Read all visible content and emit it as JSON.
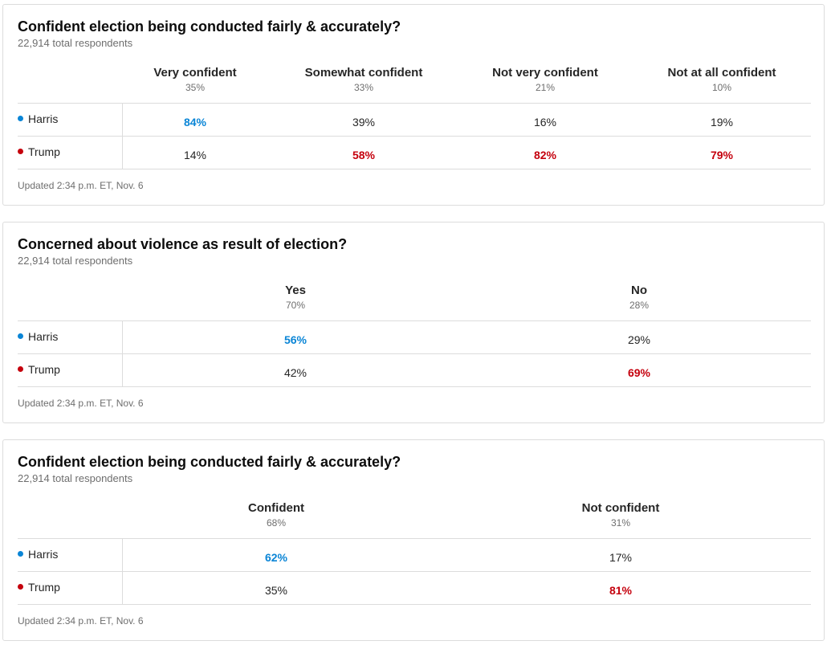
{
  "colors": {
    "harris": "#0a85d6",
    "trump": "#c5000d"
  },
  "polls": [
    {
      "title": "Confident election being conducted fairly & accurately?",
      "respondents": "22,914 total respondents",
      "columns": [
        {
          "label": "Very confident",
          "pct": "35%"
        },
        {
          "label": "Somewhat confident",
          "pct": "33%"
        },
        {
          "label": "Not very confident",
          "pct": "21%"
        },
        {
          "label": "Not at all confident",
          "pct": "10%"
        }
      ],
      "rows": [
        {
          "candidate": "Harris",
          "values": [
            "84%",
            "39%",
            "16%",
            "19%"
          ]
        },
        {
          "candidate": "Trump",
          "values": [
            "14%",
            "58%",
            "82%",
            "79%"
          ]
        }
      ],
      "updated": "Updated 2:34 p.m. ET, Nov. 6"
    },
    {
      "title": "Concerned about violence as result of election?",
      "respondents": "22,914 total respondents",
      "columns": [
        {
          "label": "Yes",
          "pct": "70%"
        },
        {
          "label": "No",
          "pct": "28%"
        }
      ],
      "rows": [
        {
          "candidate": "Harris",
          "values": [
            "56%",
            "29%"
          ]
        },
        {
          "candidate": "Trump",
          "values": [
            "42%",
            "69%"
          ]
        }
      ],
      "updated": "Updated 2:34 p.m. ET, Nov. 6"
    },
    {
      "title": "Confident election being conducted fairly & accurately?",
      "respondents": "22,914 total respondents",
      "columns": [
        {
          "label": "Confident",
          "pct": "68%"
        },
        {
          "label": "Not confident",
          "pct": "31%"
        }
      ],
      "rows": [
        {
          "candidate": "Harris",
          "values": [
            "62%",
            "17%"
          ]
        },
        {
          "candidate": "Trump",
          "values": [
            "35%",
            "81%"
          ]
        }
      ],
      "updated": "Updated 2:34 p.m. ET, Nov. 6"
    }
  ]
}
